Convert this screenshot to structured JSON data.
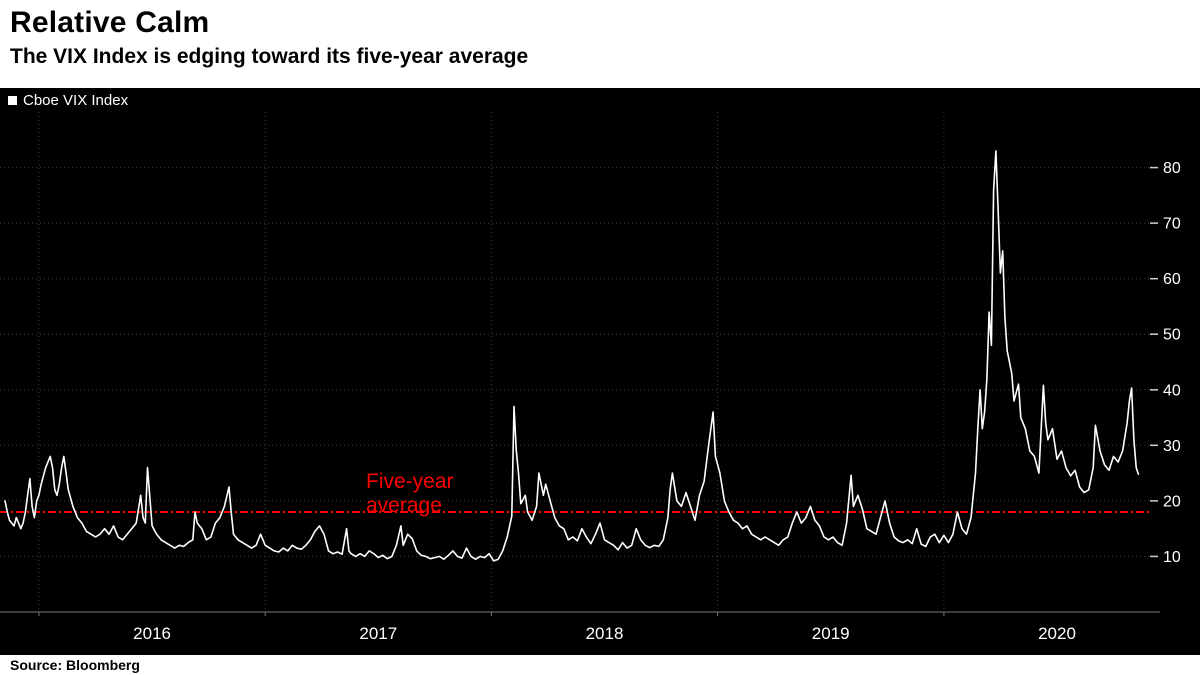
{
  "chart_data": {
    "type": "line",
    "title": "Relative Calm",
    "subtitle": "The VIX Index is edging toward its five-year average",
    "source": "Source: Bloomberg",
    "xlim": [
      2015.85,
      2020.92
    ],
    "ylim": [
      0,
      90
    ],
    "y_ticks": [
      10,
      20,
      30,
      40,
      50,
      60,
      70,
      80
    ],
    "x_ticks": [
      2016,
      2017,
      2018,
      2019,
      2020
    ],
    "x_tick_labels": [
      "2016",
      "2017",
      "2018",
      "2019",
      "2020"
    ],
    "grid": true,
    "legend_position": "top-left",
    "colors": {
      "background": "#000000",
      "line": "#ffffff",
      "grid": "#3c3c3c",
      "axis": "#7a7a7a",
      "tick_label": "#ffffff",
      "reference": "#ff0000"
    },
    "reference_line": {
      "value": 18,
      "label_line1": "Five-year",
      "label_line2": "average",
      "color": "#ff0000"
    },
    "series": [
      {
        "name": "Cboe VIX Index",
        "color": "#ffffff",
        "points": [
          [
            2015.85,
            20
          ],
          [
            2015.86,
            18
          ],
          [
            2015.87,
            16.5
          ],
          [
            2015.89,
            15.5
          ],
          [
            2015.9,
            17
          ],
          [
            2015.92,
            15
          ],
          [
            2015.93,
            16
          ],
          [
            2015.94,
            18
          ],
          [
            2015.95,
            21
          ],
          [
            2015.96,
            24
          ],
          [
            2015.97,
            19
          ],
          [
            2015.98,
            17
          ],
          [
            2015.99,
            20
          ],
          [
            2016.0,
            21
          ],
          [
            2016.01,
            23
          ],
          [
            2016.03,
            26
          ],
          [
            2016.05,
            28
          ],
          [
            2016.06,
            26
          ],
          [
            2016.07,
            22
          ],
          [
            2016.08,
            21
          ],
          [
            2016.09,
            23
          ],
          [
            2016.1,
            26
          ],
          [
            2016.11,
            28
          ],
          [
            2016.12,
            25
          ],
          [
            2016.13,
            22
          ],
          [
            2016.15,
            19
          ],
          [
            2016.17,
            17
          ],
          [
            2016.19,
            16
          ],
          [
            2016.21,
            14.5
          ],
          [
            2016.23,
            14
          ],
          [
            2016.25,
            13.5
          ],
          [
            2016.27,
            14
          ],
          [
            2016.29,
            15
          ],
          [
            2016.31,
            14
          ],
          [
            2016.33,
            15.5
          ],
          [
            2016.35,
            13.5
          ],
          [
            2016.37,
            13
          ],
          [
            2016.39,
            14
          ],
          [
            2016.41,
            15
          ],
          [
            2016.43,
            16
          ],
          [
            2016.45,
            21
          ],
          [
            2016.46,
            17
          ],
          [
            2016.47,
            16
          ],
          [
            2016.48,
            26
          ],
          [
            2016.5,
            15.5
          ],
          [
            2016.52,
            14
          ],
          [
            2016.54,
            13
          ],
          [
            2016.56,
            12.5
          ],
          [
            2016.58,
            12
          ],
          [
            2016.6,
            11.5
          ],
          [
            2016.62,
            12
          ],
          [
            2016.64,
            11.8
          ],
          [
            2016.66,
            12.5
          ],
          [
            2016.68,
            13
          ],
          [
            2016.69,
            18
          ],
          [
            2016.7,
            16
          ],
          [
            2016.72,
            15
          ],
          [
            2016.74,
            13
          ],
          [
            2016.76,
            13.5
          ],
          [
            2016.78,
            16
          ],
          [
            2016.8,
            17
          ],
          [
            2016.82,
            19
          ],
          [
            2016.84,
            22.5
          ],
          [
            2016.85,
            18
          ],
          [
            2016.86,
            14
          ],
          [
            2016.88,
            13
          ],
          [
            2016.9,
            12.5
          ],
          [
            2016.92,
            12
          ],
          [
            2016.94,
            11.5
          ],
          [
            2016.96,
            12
          ],
          [
            2016.98,
            14
          ],
          [
            2017.0,
            12
          ],
          [
            2017.02,
            11.5
          ],
          [
            2017.04,
            11
          ],
          [
            2017.06,
            10.8
          ],
          [
            2017.08,
            11.5
          ],
          [
            2017.1,
            11
          ],
          [
            2017.12,
            12
          ],
          [
            2017.14,
            11.5
          ],
          [
            2017.16,
            11.3
          ],
          [
            2017.18,
            12
          ],
          [
            2017.2,
            13
          ],
          [
            2017.22,
            14.5
          ],
          [
            2017.24,
            15.5
          ],
          [
            2017.26,
            14
          ],
          [
            2017.28,
            11
          ],
          [
            2017.3,
            10.5
          ],
          [
            2017.32,
            10.8
          ],
          [
            2017.34,
            10.4
          ],
          [
            2017.36,
            15
          ],
          [
            2017.37,
            11
          ],
          [
            2017.38,
            10.5
          ],
          [
            2017.4,
            10
          ],
          [
            2017.42,
            10.5
          ],
          [
            2017.44,
            10
          ],
          [
            2017.46,
            11
          ],
          [
            2017.48,
            10.5
          ],
          [
            2017.5,
            9.8
          ],
          [
            2017.52,
            10.2
          ],
          [
            2017.54,
            9.6
          ],
          [
            2017.56,
            10
          ],
          [
            2017.58,
            12
          ],
          [
            2017.6,
            15.5
          ],
          [
            2017.61,
            12
          ],
          [
            2017.63,
            14
          ],
          [
            2017.65,
            13.2
          ],
          [
            2017.67,
            11
          ],
          [
            2017.69,
            10.2
          ],
          [
            2017.71,
            10
          ],
          [
            2017.73,
            9.6
          ],
          [
            2017.75,
            9.8
          ],
          [
            2017.77,
            10
          ],
          [
            2017.79,
            9.5
          ],
          [
            2017.81,
            10.2
          ],
          [
            2017.83,
            11
          ],
          [
            2017.85,
            10
          ],
          [
            2017.87,
            9.7
          ],
          [
            2017.89,
            11.5
          ],
          [
            2017.91,
            10
          ],
          [
            2017.93,
            9.5
          ],
          [
            2017.95,
            10
          ],
          [
            2017.97,
            9.8
          ],
          [
            2017.99,
            10.5
          ],
          [
            2018.01,
            9.2
          ],
          [
            2018.03,
            9.5
          ],
          [
            2018.05,
            11
          ],
          [
            2018.07,
            13.5
          ],
          [
            2018.09,
            17.3
          ],
          [
            2018.1,
            37
          ],
          [
            2018.11,
            29
          ],
          [
            2018.12,
            25
          ],
          [
            2018.13,
            19.5
          ],
          [
            2018.15,
            21
          ],
          [
            2018.16,
            18
          ],
          [
            2018.18,
            16.5
          ],
          [
            2018.2,
            19
          ],
          [
            2018.21,
            25
          ],
          [
            2018.23,
            21
          ],
          [
            2018.24,
            23
          ],
          [
            2018.26,
            20
          ],
          [
            2018.28,
            17
          ],
          [
            2018.3,
            15.5
          ],
          [
            2018.32,
            15
          ],
          [
            2018.34,
            13
          ],
          [
            2018.36,
            13.5
          ],
          [
            2018.38,
            12.8
          ],
          [
            2018.4,
            15
          ],
          [
            2018.42,
            13.5
          ],
          [
            2018.44,
            12.3
          ],
          [
            2018.46,
            14
          ],
          [
            2018.48,
            16
          ],
          [
            2018.5,
            13
          ],
          [
            2018.52,
            12.5
          ],
          [
            2018.54,
            12
          ],
          [
            2018.56,
            11.2
          ],
          [
            2018.58,
            12.5
          ],
          [
            2018.6,
            11.5
          ],
          [
            2018.62,
            12
          ],
          [
            2018.64,
            15
          ],
          [
            2018.66,
            13
          ],
          [
            2018.68,
            12
          ],
          [
            2018.7,
            11.6
          ],
          [
            2018.72,
            12
          ],
          [
            2018.74,
            11.8
          ],
          [
            2018.76,
            13
          ],
          [
            2018.78,
            17
          ],
          [
            2018.79,
            22
          ],
          [
            2018.8,
            25
          ],
          [
            2018.82,
            20
          ],
          [
            2018.84,
            19
          ],
          [
            2018.86,
            21.5
          ],
          [
            2018.88,
            19
          ],
          [
            2018.9,
            16.5
          ],
          [
            2018.92,
            21
          ],
          [
            2018.94,
            23.5
          ],
          [
            2018.96,
            30
          ],
          [
            2018.98,
            36
          ],
          [
            2018.99,
            28
          ],
          [
            2019.01,
            25
          ],
          [
            2019.03,
            20
          ],
          [
            2019.05,
            18
          ],
          [
            2019.07,
            16.5
          ],
          [
            2019.09,
            16
          ],
          [
            2019.11,
            15
          ],
          [
            2019.13,
            15.5
          ],
          [
            2019.15,
            14
          ],
          [
            2019.17,
            13.5
          ],
          [
            2019.19,
            13
          ],
          [
            2019.21,
            13.5
          ],
          [
            2019.23,
            13
          ],
          [
            2019.25,
            12.5
          ],
          [
            2019.27,
            12
          ],
          [
            2019.29,
            13
          ],
          [
            2019.31,
            13.5
          ],
          [
            2019.33,
            16
          ],
          [
            2019.35,
            18
          ],
          [
            2019.37,
            16
          ],
          [
            2019.39,
            17
          ],
          [
            2019.41,
            19
          ],
          [
            2019.43,
            16.5
          ],
          [
            2019.45,
            15.5
          ],
          [
            2019.47,
            13.5
          ],
          [
            2019.49,
            13
          ],
          [
            2019.51,
            13.5
          ],
          [
            2019.53,
            12.5
          ],
          [
            2019.55,
            12
          ],
          [
            2019.57,
            16
          ],
          [
            2019.59,
            24.6
          ],
          [
            2019.6,
            19
          ],
          [
            2019.62,
            21
          ],
          [
            2019.64,
            18.5
          ],
          [
            2019.66,
            15
          ],
          [
            2019.68,
            14.5
          ],
          [
            2019.7,
            14
          ],
          [
            2019.72,
            17
          ],
          [
            2019.74,
            20
          ],
          [
            2019.76,
            16
          ],
          [
            2019.78,
            13.5
          ],
          [
            2019.8,
            12.8
          ],
          [
            2019.82,
            12.5
          ],
          [
            2019.84,
            13
          ],
          [
            2019.86,
            12.3
          ],
          [
            2019.88,
            15
          ],
          [
            2019.9,
            12.2
          ],
          [
            2019.92,
            11.8
          ],
          [
            2019.94,
            13.5
          ],
          [
            2019.96,
            14
          ],
          [
            2019.98,
            12.5
          ],
          [
            2020.0,
            13.8
          ],
          [
            2020.02,
            12.5
          ],
          [
            2020.04,
            14
          ],
          [
            2020.06,
            18
          ],
          [
            2020.08,
            15
          ],
          [
            2020.1,
            14
          ],
          [
            2020.12,
            17
          ],
          [
            2020.14,
            25
          ],
          [
            2020.15,
            33
          ],
          [
            2020.16,
            40
          ],
          [
            2020.17,
            33
          ],
          [
            2020.18,
            36
          ],
          [
            2020.19,
            42
          ],
          [
            2020.2,
            54
          ],
          [
            2020.21,
            48
          ],
          [
            2020.22,
            76
          ],
          [
            2020.23,
            83
          ],
          [
            2020.24,
            72
          ],
          [
            2020.25,
            61
          ],
          [
            2020.26,
            65
          ],
          [
            2020.27,
            53
          ],
          [
            2020.28,
            47
          ],
          [
            2020.3,
            43
          ],
          [
            2020.31,
            38
          ],
          [
            2020.33,
            41
          ],
          [
            2020.34,
            35
          ],
          [
            2020.36,
            33
          ],
          [
            2020.38,
            29
          ],
          [
            2020.4,
            28
          ],
          [
            2020.42,
            25
          ],
          [
            2020.44,
            40.8
          ],
          [
            2020.45,
            34
          ],
          [
            2020.46,
            31
          ],
          [
            2020.48,
            33
          ],
          [
            2020.5,
            27.5
          ],
          [
            2020.52,
            29
          ],
          [
            2020.54,
            26
          ],
          [
            2020.56,
            24.5
          ],
          [
            2020.58,
            25.5
          ],
          [
            2020.6,
            22.5
          ],
          [
            2020.62,
            21.5
          ],
          [
            2020.64,
            22
          ],
          [
            2020.66,
            26
          ],
          [
            2020.67,
            33.6
          ],
          [
            2020.69,
            29
          ],
          [
            2020.71,
            26.5
          ],
          [
            2020.73,
            25.5
          ],
          [
            2020.75,
            28
          ],
          [
            2020.77,
            27
          ],
          [
            2020.79,
            29
          ],
          [
            2020.81,
            34
          ],
          [
            2020.82,
            38
          ],
          [
            2020.83,
            40.3
          ],
          [
            2020.84,
            31
          ],
          [
            2020.85,
            26
          ],
          [
            2020.86,
            24.8
          ]
        ]
      }
    ]
  }
}
